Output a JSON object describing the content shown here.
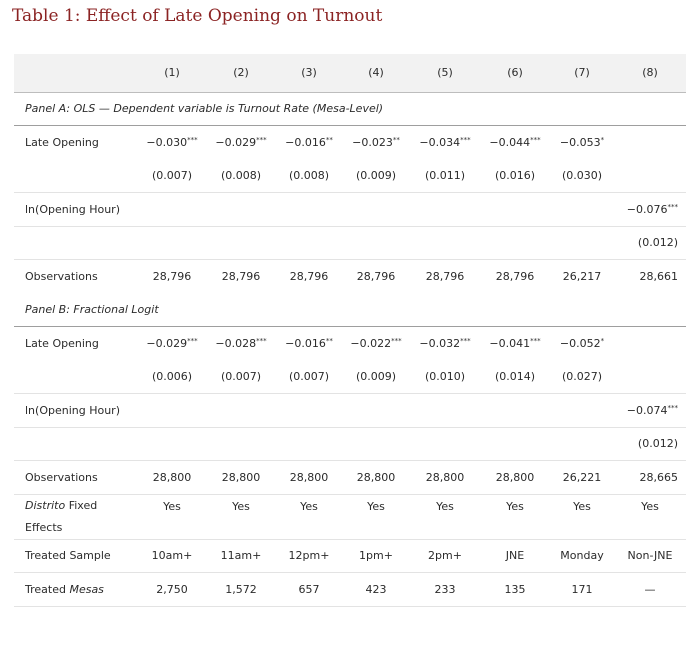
{
  "title": "Table 1: Effect of Late Opening on Turnout",
  "columns": [
    "(1)",
    "(2)",
    "(3)",
    "(4)",
    "(5)",
    "(6)",
    "(7)",
    "(8)"
  ],
  "panel_a": {
    "heading": "Panel A: OLS — Dependent variable is Turnout Rate (Mesa-Level)",
    "late_opening": {
      "label": "Late Opening",
      "coefs": [
        {
          "v": "−0.030",
          "s": "***"
        },
        {
          "v": "−0.029",
          "s": "***"
        },
        {
          "v": "−0.016",
          "s": "**"
        },
        {
          "v": "−0.023",
          "s": "**"
        },
        {
          "v": "−0.034",
          "s": "***"
        },
        {
          "v": "−0.044",
          "s": "***"
        },
        {
          "v": "−0.053",
          "s": "*"
        }
      ],
      "ses": [
        "(0.007)",
        "(0.008)",
        "(0.008)",
        "(0.009)",
        "(0.011)",
        "(0.016)",
        "(0.030)"
      ]
    },
    "ln_hour": {
      "label": "ln(Opening Hour)",
      "coef": {
        "v": "−0.076",
        "s": "***"
      },
      "se": "(0.012)"
    },
    "observations": {
      "label": "Observations",
      "values": [
        "28,796",
        "28,796",
        "28,796",
        "28,796",
        "28,796",
        "28,796",
        "26,217",
        "28,661"
      ]
    }
  },
  "panel_b": {
    "heading": "Panel B: Fractional Logit",
    "late_opening": {
      "label": "Late Opening",
      "coefs": [
        {
          "v": "−0.029",
          "s": "***"
        },
        {
          "v": "−0.028",
          "s": "***"
        },
        {
          "v": "−0.016",
          "s": "**"
        },
        {
          "v": "−0.022",
          "s": "***"
        },
        {
          "v": "−0.032",
          "s": "***"
        },
        {
          "v": "−0.041",
          "s": "***"
        },
        {
          "v": "−0.052",
          "s": "*"
        }
      ],
      "ses": [
        "(0.006)",
        "(0.007)",
        "(0.007)",
        "(0.009)",
        "(0.010)",
        "(0.014)",
        "(0.027)"
      ]
    },
    "ln_hour": {
      "label": "ln(Opening Hour)",
      "coef": {
        "v": "−0.074",
        "s": "***"
      },
      "se": "(0.012)"
    },
    "observations": {
      "label": "Observations",
      "values": [
        "28,800",
        "28,800",
        "28,800",
        "28,800",
        "28,800",
        "28,800",
        "26,221",
        "28,665"
      ]
    }
  },
  "distrito_fe": {
    "label_italic": "Distrito",
    "label_rest": " Fixed Effects",
    "values": [
      "Yes",
      "Yes",
      "Yes",
      "Yes",
      "Yes",
      "Yes",
      "Yes",
      "Yes"
    ]
  },
  "treated_sample": {
    "label": "Treated Sample",
    "values": [
      "10am+",
      "11am+",
      "12pm+",
      "1pm+",
      "2pm+",
      "JNE",
      "Monday",
      "Non-JNE"
    ]
  },
  "treated_mesas": {
    "label_plain": "Treated ",
    "label_italic": "Mesas",
    "values": [
      "2,750",
      "1,572",
      "657",
      "423",
      "233",
      "135",
      "171",
      "—"
    ]
  }
}
